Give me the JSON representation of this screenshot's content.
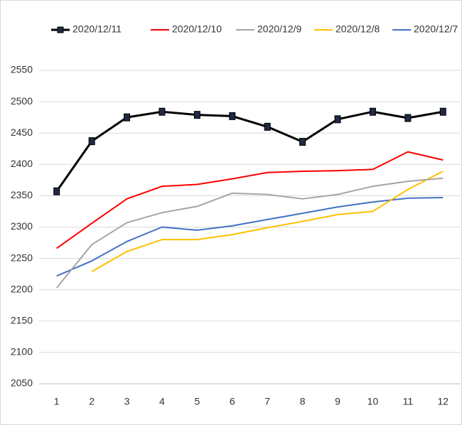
{
  "chart_data": {
    "type": "line",
    "categories": [
      "1",
      "2",
      "3",
      "4",
      "5",
      "6",
      "7",
      "8",
      "9",
      "10",
      "11",
      "12"
    ],
    "series": [
      {
        "name": "2020/12/11",
        "color": "#000000",
        "marker": "square",
        "values": [
          2357,
          2437,
          2475,
          2484,
          2479,
          2477,
          2460,
          2436,
          2472,
          2484,
          2474,
          2484
        ]
      },
      {
        "name": "2020/12/10",
        "color": "#ff0000",
        "values": [
          2266,
          2306,
          2345,
          2365,
          2368,
          2377,
          2387,
          2389,
          2390,
          2392,
          2420,
          2407
        ]
      },
      {
        "name": "2020/12/9",
        "color": "#a5a5a5",
        "values": [
          2203,
          2272,
          2307,
          2323,
          2333,
          2354,
          2352,
          2345,
          2352,
          2365,
          2373,
          2378
        ]
      },
      {
        "name": "2020/12/8",
        "color": "#ffc000",
        "values": [
          null,
          2229,
          2261,
          2280,
          2280,
          2288,
          2299,
          2309,
          2320,
          2325,
          2360,
          2389
        ]
      },
      {
        "name": "2020/12/7",
        "color": "#4472c4",
        "values": [
          2222,
          2246,
          2277,
          2300,
          2295,
          2302,
          2312,
          2322,
          2332,
          2340,
          2346,
          2347
        ]
      }
    ],
    "ylim": [
      2050,
      2550
    ],
    "yticks": [
      2050,
      2100,
      2150,
      2200,
      2250,
      2300,
      2350,
      2400,
      2450,
      2500,
      2550
    ],
    "grid": true,
    "legend": "top"
  }
}
